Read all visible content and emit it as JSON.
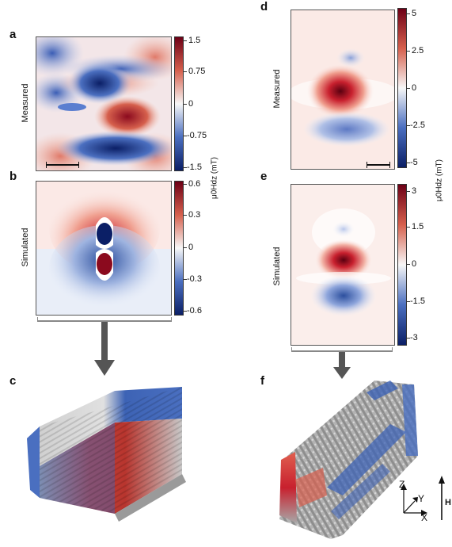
{
  "panels": {
    "a": {
      "letter": "a",
      "row_label": "Measured",
      "ticks": [
        "1.5",
        "0.75",
        "0",
        "-0.75",
        "-1.5"
      ]
    },
    "b": {
      "letter": "b",
      "row_label": "Simulated",
      "ticks": [
        "0.6",
        "0.3",
        "0",
        "-0.3",
        "-0.6"
      ]
    },
    "c": {
      "letter": "c"
    },
    "d": {
      "letter": "d",
      "row_label": "Measured",
      "ticks": [
        "5",
        "2.5",
        "0",
        "-2.5",
        "-5"
      ]
    },
    "e": {
      "letter": "e",
      "row_label": "Simulated",
      "ticks": [
        "3",
        "1.5",
        "0",
        "-1.5",
        "-3"
      ]
    },
    "f": {
      "letter": "f"
    }
  },
  "colorbar_unit_left": "μ0Hdz (mT)",
  "colorbar_unit_right": "μ0Hdz (mT)",
  "axes": {
    "z": "Z",
    "y": "Y",
    "x": "X",
    "field": "H"
  },
  "colors": {
    "red": "#b2182b",
    "blue": "#2c4f9e",
    "white": "#f7f7f7",
    "grey": "#a8a8a8"
  }
}
